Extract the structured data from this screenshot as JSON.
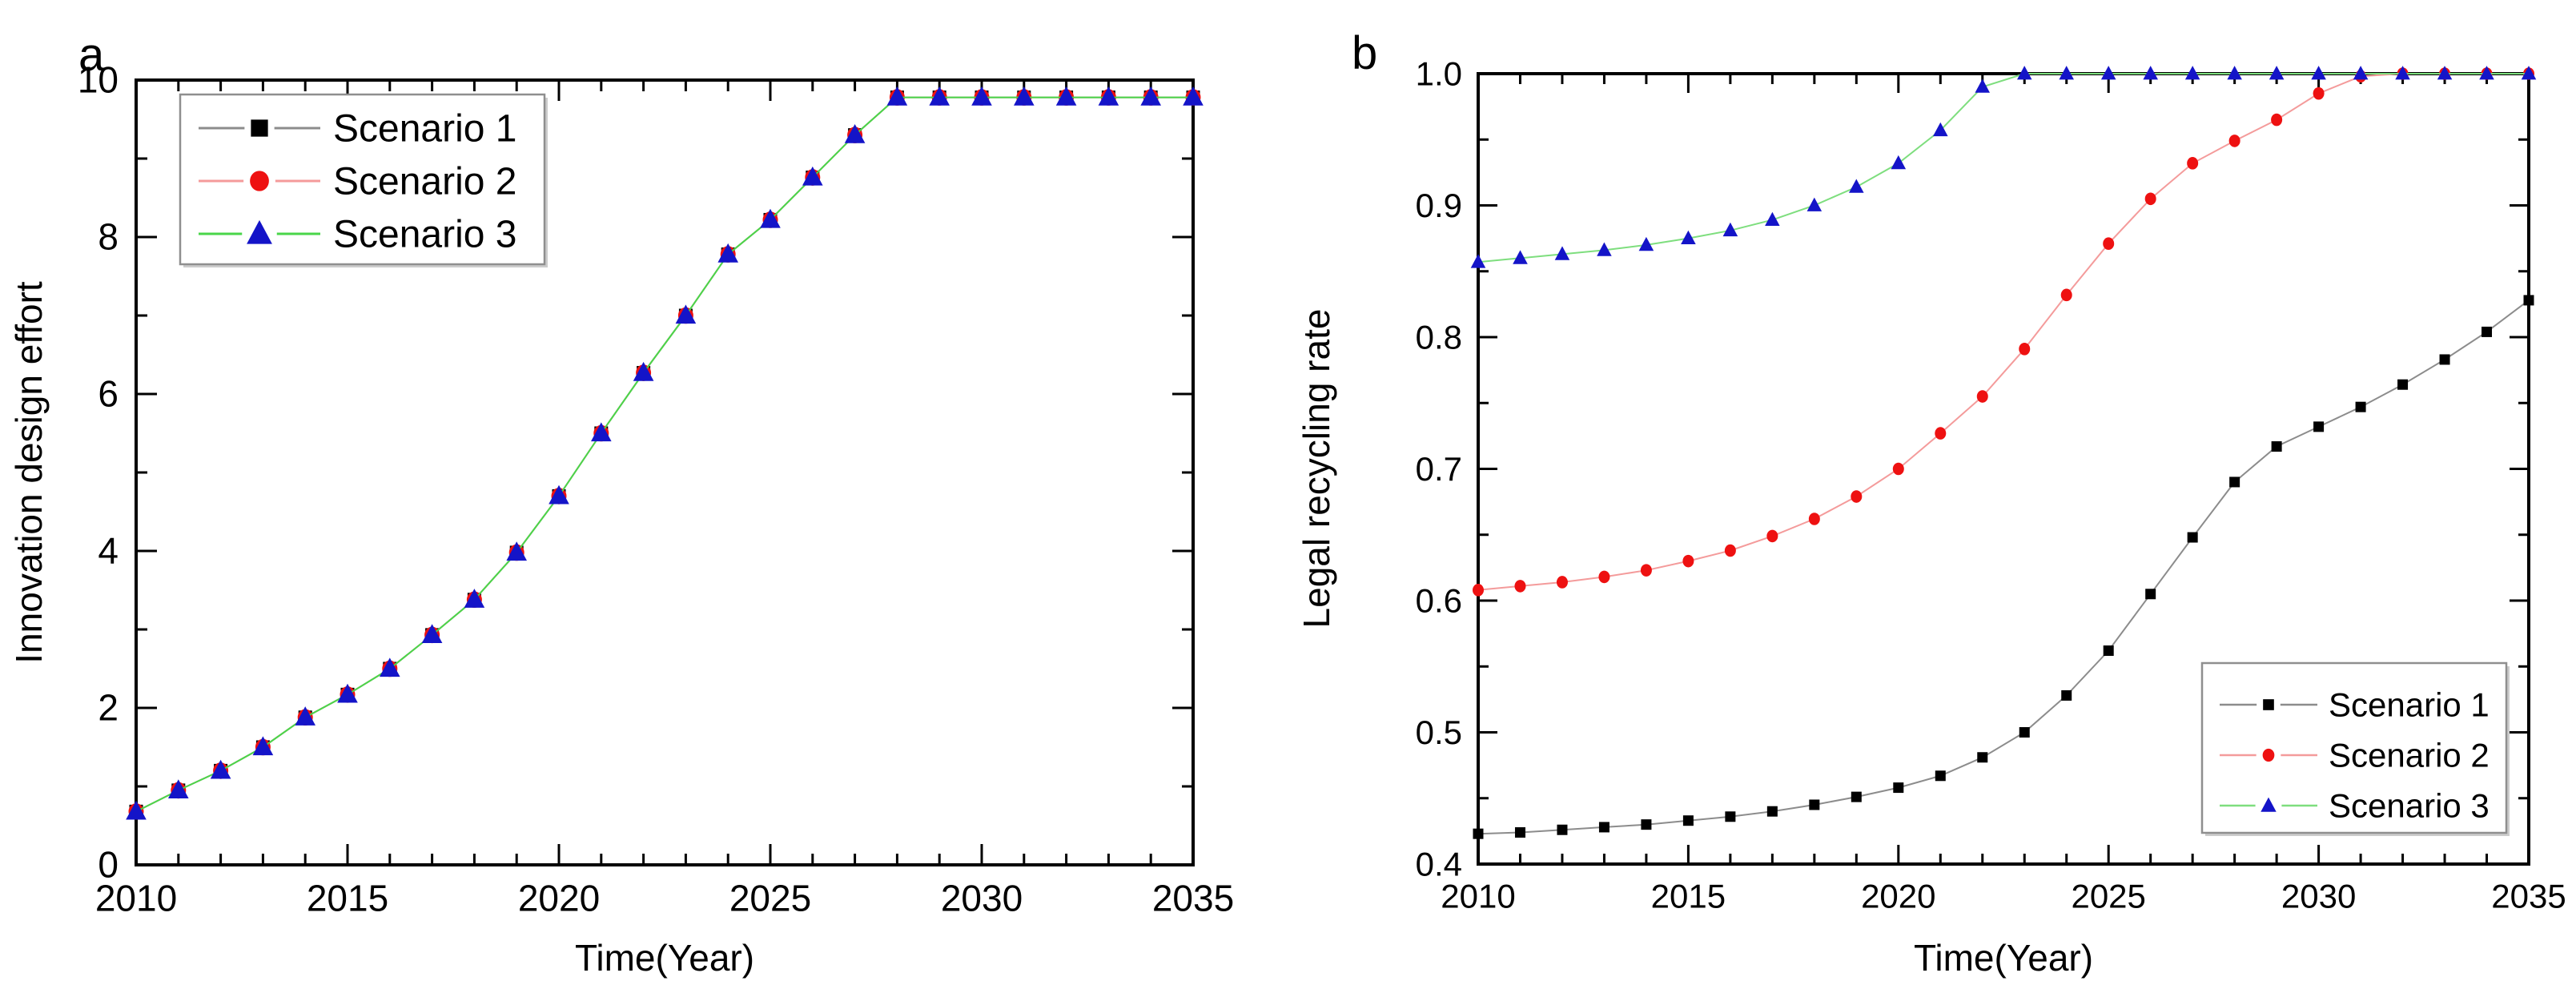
{
  "figure": {
    "background": "#ffffff",
    "panel_count": 2
  },
  "chart_data": [
    {
      "type": "line",
      "panel_label": "a",
      "title": "",
      "xlabel": "Time(Year)",
      "ylabel": "Innovation design effort",
      "xlim": [
        2010,
        2035
      ],
      "ylim": [
        0,
        10
      ],
      "grid": false,
      "legend_position": "top-left",
      "x_major_ticks": [
        2010,
        2015,
        2020,
        2025,
        2030,
        2035
      ],
      "x_tick_labels": [
        "2010",
        "2015",
        "2020",
        "2025",
        "2030",
        "2035"
      ],
      "x_minor_step": 1,
      "y_major_ticks": [
        0,
        2,
        4,
        6,
        8,
        10
      ],
      "y_tick_labels": [
        "0",
        "2",
        "4",
        "6",
        "8",
        "10"
      ],
      "y_minor_step": 1,
      "x": [
        2010,
        2011,
        2012,
        2013,
        2014,
        2015,
        2016,
        2017,
        2018,
        2019,
        2020,
        2021,
        2022,
        2023,
        2024,
        2025,
        2026,
        2027,
        2028,
        2029,
        2030,
        2031,
        2032,
        2033,
        2034,
        2035
      ],
      "series": [
        {
          "name": "Scenario 1",
          "marker": "square",
          "marker_color": "#000000",
          "line_color": "#8c8c8c",
          "values": [
            0.68,
            0.95,
            1.2,
            1.5,
            1.88,
            2.17,
            2.5,
            2.93,
            3.38,
            3.98,
            4.7,
            5.5,
            6.27,
            7.0,
            7.78,
            8.22,
            8.76,
            9.3,
            9.78,
            9.78,
            9.78,
            9.78,
            9.78,
            9.78,
            9.78,
            9.78
          ]
        },
        {
          "name": "Scenario 2",
          "marker": "circle",
          "marker_color": "#ee1111",
          "line_color": "#f49b9b",
          "values": [
            0.68,
            0.95,
            1.2,
            1.5,
            1.88,
            2.17,
            2.5,
            2.93,
            3.38,
            3.98,
            4.7,
            5.5,
            6.27,
            7.0,
            7.78,
            8.22,
            8.76,
            9.3,
            9.78,
            9.78,
            9.78,
            9.78,
            9.78,
            9.78,
            9.78,
            9.78
          ]
        },
        {
          "name": "Scenario 3",
          "marker": "triangle",
          "marker_color": "#1414c8",
          "line_color": "#49d649",
          "values": [
            0.68,
            0.95,
            1.2,
            1.5,
            1.88,
            2.17,
            2.5,
            2.93,
            3.38,
            3.98,
            4.7,
            5.5,
            6.27,
            7.0,
            7.78,
            8.22,
            8.76,
            9.3,
            9.78,
            9.78,
            9.78,
            9.78,
            9.78,
            9.78,
            9.78,
            9.78
          ]
        }
      ]
    },
    {
      "type": "line",
      "panel_label": "b",
      "title": "",
      "xlabel": "Time(Year)",
      "ylabel": "Legal recycling rate",
      "xlim": [
        2010,
        2035
      ],
      "ylim": [
        0.4,
        1.0
      ],
      "grid": false,
      "legend_position": "bottom-right",
      "x_major_ticks": [
        2010,
        2015,
        2020,
        2025,
        2030,
        2035
      ],
      "x_tick_labels": [
        "2010",
        "2015",
        "2020",
        "2025",
        "2030",
        "2035"
      ],
      "x_minor_step": 1,
      "y_major_ticks": [
        0.4,
        0.5,
        0.6,
        0.7,
        0.8,
        0.9,
        1.0
      ],
      "y_tick_labels": [
        "0.4",
        "0.5",
        "0.6",
        "0.7",
        "0.8",
        "0.9",
        "1.0"
      ],
      "y_minor_step": 0.05,
      "x": [
        2010,
        2011,
        2012,
        2013,
        2014,
        2015,
        2016,
        2017,
        2018,
        2019,
        2020,
        2021,
        2022,
        2023,
        2024,
        2025,
        2026,
        2027,
        2028,
        2029,
        2030,
        2031,
        2032,
        2033,
        2034,
        2035
      ],
      "series": [
        {
          "name": "Scenario 1",
          "marker": "square",
          "marker_color": "#000000",
          "line_color": "#8c8c8c",
          "values": [
            0.423,
            0.424,
            0.426,
            0.428,
            0.43,
            0.433,
            0.436,
            0.44,
            0.445,
            0.451,
            0.458,
            0.467,
            0.481,
            0.5,
            0.528,
            0.562,
            0.605,
            0.648,
            0.69,
            0.717,
            0.732,
            0.747,
            0.764,
            0.783,
            0.804,
            0.828
          ]
        },
        {
          "name": "Scenario 2",
          "marker": "circle",
          "marker_color": "#ee1111",
          "line_color": "#f49b9b",
          "values": [
            0.608,
            0.611,
            0.614,
            0.618,
            0.623,
            0.63,
            0.638,
            0.649,
            0.662,
            0.679,
            0.7,
            0.727,
            0.755,
            0.791,
            0.832,
            0.871,
            0.905,
            0.932,
            0.949,
            0.965,
            0.985,
            0.998,
            1.0,
            1.0,
            1.0,
            1.0
          ]
        },
        {
          "name": "Scenario 3",
          "marker": "triangle",
          "marker_color": "#1414c8",
          "line_color": "#7ede7e",
          "values": [
            0.857,
            0.86,
            0.863,
            0.866,
            0.87,
            0.875,
            0.881,
            0.889,
            0.9,
            0.914,
            0.932,
            0.957,
            0.99,
            1.0,
            1.0,
            1.0,
            1.0,
            1.0,
            1.0,
            1.0,
            1.0,
            1.0,
            1.0,
            1.0,
            1.0,
            1.0
          ]
        }
      ]
    }
  ]
}
